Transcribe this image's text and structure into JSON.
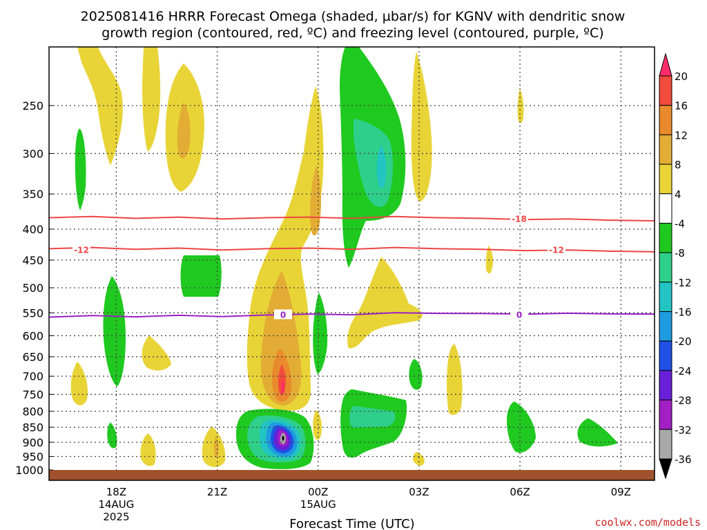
{
  "chart_data": {
    "type": "heatmap",
    "title_line1": "2025081416 HRRR Forecast Omega (shaded, µbar/s) for KGNV with dendritic snow",
    "title_line2": "growth region (contoured, red, ºC) and freezing level (contoured, purple, ºC)",
    "xlabel": "Forecast Time (UTC)",
    "credit": "coolwx.com/models",
    "x_ticks": [
      {
        "label": "18Z",
        "sub1": "14AUG",
        "sub2": "2025",
        "hour": 18
      },
      {
        "label": "21Z",
        "sub1": "",
        "sub2": "",
        "hour": 21
      },
      {
        "label": "00Z",
        "sub1": "15AUG",
        "sub2": "",
        "hour": 24
      },
      {
        "label": "03Z",
        "sub1": "",
        "sub2": "",
        "hour": 27
      },
      {
        "label": "06Z",
        "sub1": "",
        "sub2": "",
        "hour": 30
      },
      {
        "label": "09Z",
        "sub1": "",
        "sub2": "",
        "hour": 33
      }
    ],
    "x_range_hours": [
      16,
      34
    ],
    "y_ticks": [
      "250",
      "300",
      "350",
      "400",
      "450",
      "500",
      "550",
      "600",
      "650",
      "700",
      "750",
      "800",
      "850",
      "900",
      "950",
      "1000"
    ],
    "y_range_mb": [
      200,
      1000
    ],
    "y_scale": "log",
    "grid": true,
    "colorbar": {
      "labels": [
        "20",
        "16",
        "12",
        "8",
        "4",
        "-4",
        "-8",
        "-12",
        "-16",
        "-20",
        "-24",
        "-28",
        "-32",
        "-36"
      ],
      "colors": [
        "#ff2d6a",
        "#f24a3c",
        "#e98a2c",
        "#e3ad35",
        "#e8d436",
        "#ffffff",
        "#1fc91f",
        "#2ecf8a",
        "#22c4c4",
        "#1f9bdf",
        "#2050e6",
        "#6a1fd9",
        "#a21fc4",
        "#a8a8a8",
        "#000000"
      ]
    },
    "isotherms": [
      {
        "value": "-18",
        "color": "#ee4444",
        "pressure_mb": 383
      },
      {
        "value": "-12",
        "color": "#ee4444",
        "pressure_mb": 431
      },
      {
        "value": "0",
        "color": "#9a20c4",
        "pressure_mb": 559
      }
    ],
    "ground_color": "#a0522d"
  }
}
